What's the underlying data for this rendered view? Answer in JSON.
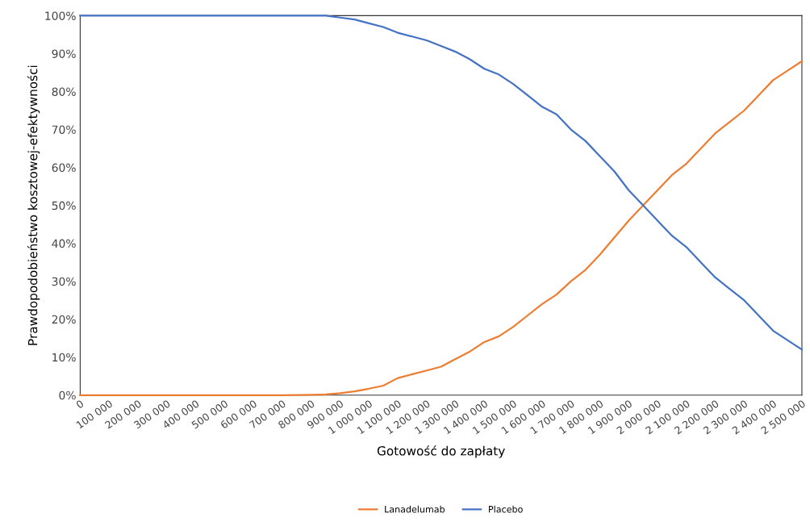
{
  "chart_data": {
    "type": "line",
    "xlabel": "Gotowość do zapłaty",
    "ylabel": "Prawdopodobieństwo kosztowej-efektywności",
    "x": [
      0,
      100000,
      200000,
      300000,
      400000,
      500000,
      600000,
      700000,
      800000,
      850000,
      900000,
      950000,
      1000000,
      1050000,
      1100000,
      1150000,
      1200000,
      1250000,
      1300000,
      1350000,
      1400000,
      1450000,
      1500000,
      1550000,
      1600000,
      1650000,
      1700000,
      1750000,
      1800000,
      1850000,
      1900000,
      1950000,
      2000000,
      2050000,
      2100000,
      2150000,
      2200000,
      2250000,
      2300000,
      2350000,
      2400000,
      2450000,
      2500000
    ],
    "series": [
      {
        "name": "Lanadelumab",
        "color": "#ed7d31",
        "values": [
          0,
          0,
          0,
          0,
          0,
          0,
          0,
          0,
          0.1,
          0.2,
          0.5,
          1,
          1.7,
          2.5,
          4.5,
          5.5,
          6.5,
          7.5,
          9.5,
          11.5,
          14,
          15.5,
          18,
          21,
          24,
          26.5,
          30,
          33,
          37,
          41.5,
          46,
          50,
          54,
          58,
          61,
          65,
          69,
          72,
          75,
          79,
          83,
          85.5,
          88
        ]
      },
      {
        "name": "Placebo",
        "color": "#4472c4",
        "values": [
          100,
          100,
          100,
          100,
          100,
          100,
          100,
          100,
          100,
          100,
          99.5,
          99,
          98,
          97,
          95.5,
          94.5,
          93.5,
          92,
          90.5,
          88.5,
          86,
          84.5,
          82,
          79,
          76,
          74,
          70,
          67,
          63,
          59,
          54,
          50,
          46,
          42,
          39,
          35,
          31,
          28,
          25,
          21,
          17,
          14.5,
          12
        ]
      }
    ],
    "xlim": [
      0,
      2500000
    ],
    "xticks": [
      0,
      {
        "value": 100000,
        "label": "100 000"
      },
      {
        "value": 200000,
        "label": "200 000"
      },
      {
        "value": 300000,
        "label": "300 000"
      },
      {
        "value": 400000,
        "label": "400 000"
      },
      {
        "value": 500000,
        "label": "500 000"
      },
      {
        "value": 600000,
        "label": "600 000"
      },
      {
        "value": 700000,
        "label": "700 000"
      },
      {
        "value": 800000,
        "label": "800 000"
      },
      {
        "value": 900000,
        "label": "900 000"
      },
      {
        "value": 1000000,
        "label": "1 000 000"
      },
      {
        "value": 1100000,
        "label": "1 100 000"
      },
      {
        "value": 1200000,
        "label": "1 200 000"
      },
      {
        "value": 1300000,
        "label": "1 300 000"
      },
      {
        "value": 1400000,
        "label": "1 400 000"
      },
      {
        "value": 1500000,
        "label": "1 500 000"
      },
      {
        "value": 1600000,
        "label": "1 600 000"
      },
      {
        "value": 1700000,
        "label": "1 700 000"
      },
      {
        "value": 1800000,
        "label": "1 800 000"
      },
      {
        "value": 1900000,
        "label": "1 900 000"
      },
      {
        "value": 2000000,
        "label": "2 000 000"
      },
      {
        "value": 2100000,
        "label": "2 100 000"
      },
      {
        "value": 2200000,
        "label": "2 200 000"
      },
      {
        "value": 2300000,
        "label": "2 300 000"
      },
      {
        "value": 2400000,
        "label": "2 400 000"
      },
      {
        "value": 2500000,
        "label": "2 500 000"
      }
    ],
    "ylim": [
      0,
      100
    ],
    "yticks": [
      {
        "value": 0,
        "label": "0%"
      },
      {
        "value": 10,
        "label": "10%"
      },
      {
        "value": 20,
        "label": "20%"
      },
      {
        "value": 30,
        "label": "30%"
      },
      {
        "value": 40,
        "label": "40%"
      },
      {
        "value": 50,
        "label": "50%"
      },
      {
        "value": 60,
        "label": "60%"
      },
      {
        "value": 70,
        "label": "70%"
      },
      {
        "value": 80,
        "label": "80%"
      },
      {
        "value": 90,
        "label": "90%"
      },
      {
        "value": 100,
        "label": "100%"
      }
    ],
    "grid": false,
    "legend": "bottom",
    "marker": "none",
    "line_style": "solid"
  }
}
